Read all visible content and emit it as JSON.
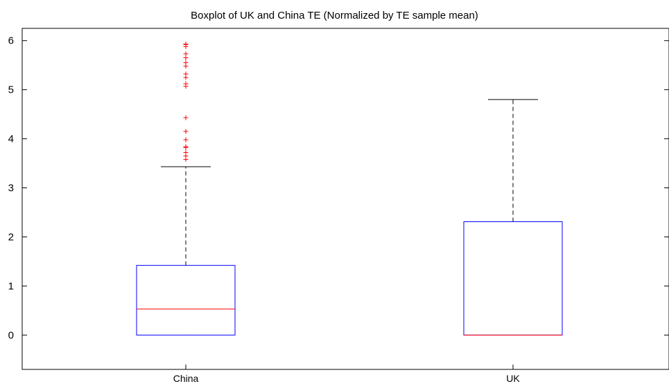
{
  "chart_data": {
    "type": "boxplot",
    "title": "Boxplot of UK and China TE (Normalized by TE sample mean)",
    "xlabel": "",
    "ylabel": "",
    "ylim": [
      -0.7,
      6.25
    ],
    "yticks": [
      0,
      1,
      2,
      3,
      4,
      5,
      6
    ],
    "grid": false,
    "categories": [
      "China",
      "UK"
    ],
    "boxes": [
      {
        "label": "China",
        "whisker_low": 0,
        "q1": 0,
        "median": 0.53,
        "q3": 1.42,
        "whisker_high": 3.43,
        "outliers": [
          3.58,
          3.65,
          3.72,
          3.82,
          3.84,
          3.98,
          4.15,
          4.43,
          5.07,
          5.12,
          5.25,
          5.32,
          5.48,
          5.55,
          5.65,
          5.73,
          5.88,
          5.92,
          5.93
        ]
      },
      {
        "label": "UK",
        "whisker_low": 0,
        "q1": 0,
        "median": 0,
        "q3": 2.31,
        "whisker_high": 4.8,
        "outliers": []
      }
    ],
    "colors": {
      "box": "#0000ff",
      "median": "#ff0000",
      "whisker": "#000000",
      "outlier": "#ff0000",
      "axis": "#000000"
    }
  }
}
